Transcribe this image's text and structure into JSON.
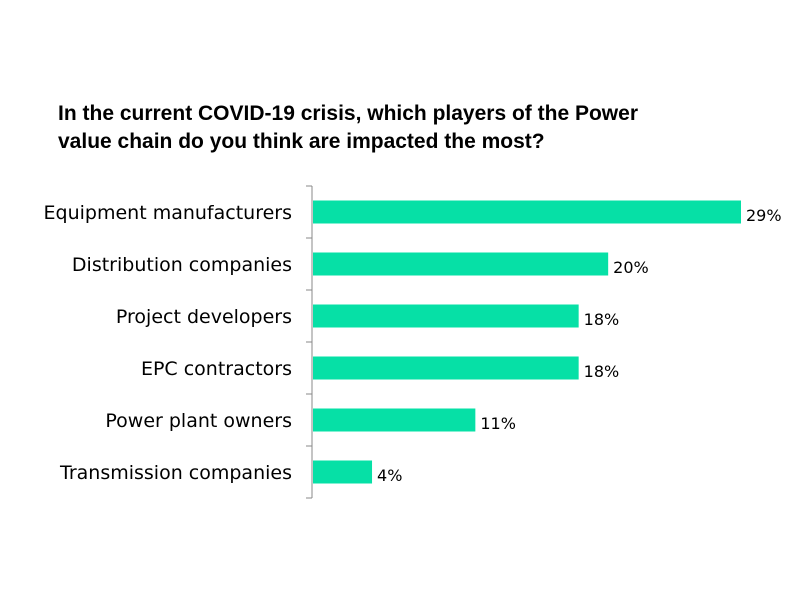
{
  "chart_data": {
    "type": "bar",
    "orientation": "horizontal",
    "title_lines": [
      "In the current COVID-19 crisis, which players of the Power",
      "value chain do you think are impacted the most?"
    ],
    "categories": [
      "Equipment manufacturers",
      "Distribution companies",
      "Project developers",
      "EPC contractors",
      "Power plant owners",
      "Transmission companies"
    ],
    "values": [
      29,
      20,
      18,
      18,
      11,
      4
    ],
    "data_labels": [
      "29%",
      "20%",
      "18%",
      "18%",
      "11%",
      "4%"
    ],
    "unit": "%",
    "xlim": [
      0,
      29
    ],
    "grid": false,
    "legend": "none",
    "colors": {
      "bar": "#06E0A6",
      "axis": "#888888",
      "text": "#000000"
    }
  }
}
